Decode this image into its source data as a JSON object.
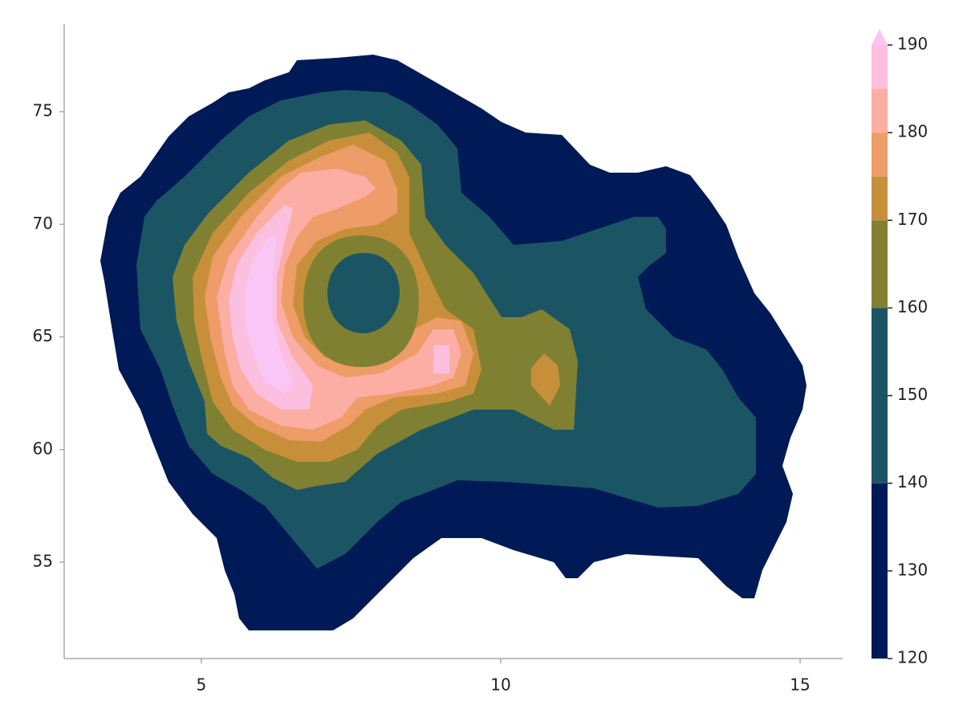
{
  "chart_data": {
    "type": "contourf",
    "levels": [
      120,
      140,
      160,
      170,
      175,
      180,
      185,
      190
    ],
    "colors": [
      "#001a57",
      "#1b5564",
      "#808033",
      "#c88f3a",
      "#ee9c68",
      "#fcaea5",
      "#fbc0e0"
    ],
    "extend_high_color": "#f9c6f5",
    "xlim": [
      2.71,
      15.71
    ],
    "xticks": [
      5,
      10,
      15
    ],
    "ylim": [
      50.72,
      78.89
    ],
    "yticks": [
      55,
      60,
      65,
      70,
      75
    ],
    "colorbar_lim": [
      120,
      190
    ],
    "colorbar_ticks": [
      120,
      130,
      140,
      150,
      160,
      170,
      180,
      190
    ]
  }
}
